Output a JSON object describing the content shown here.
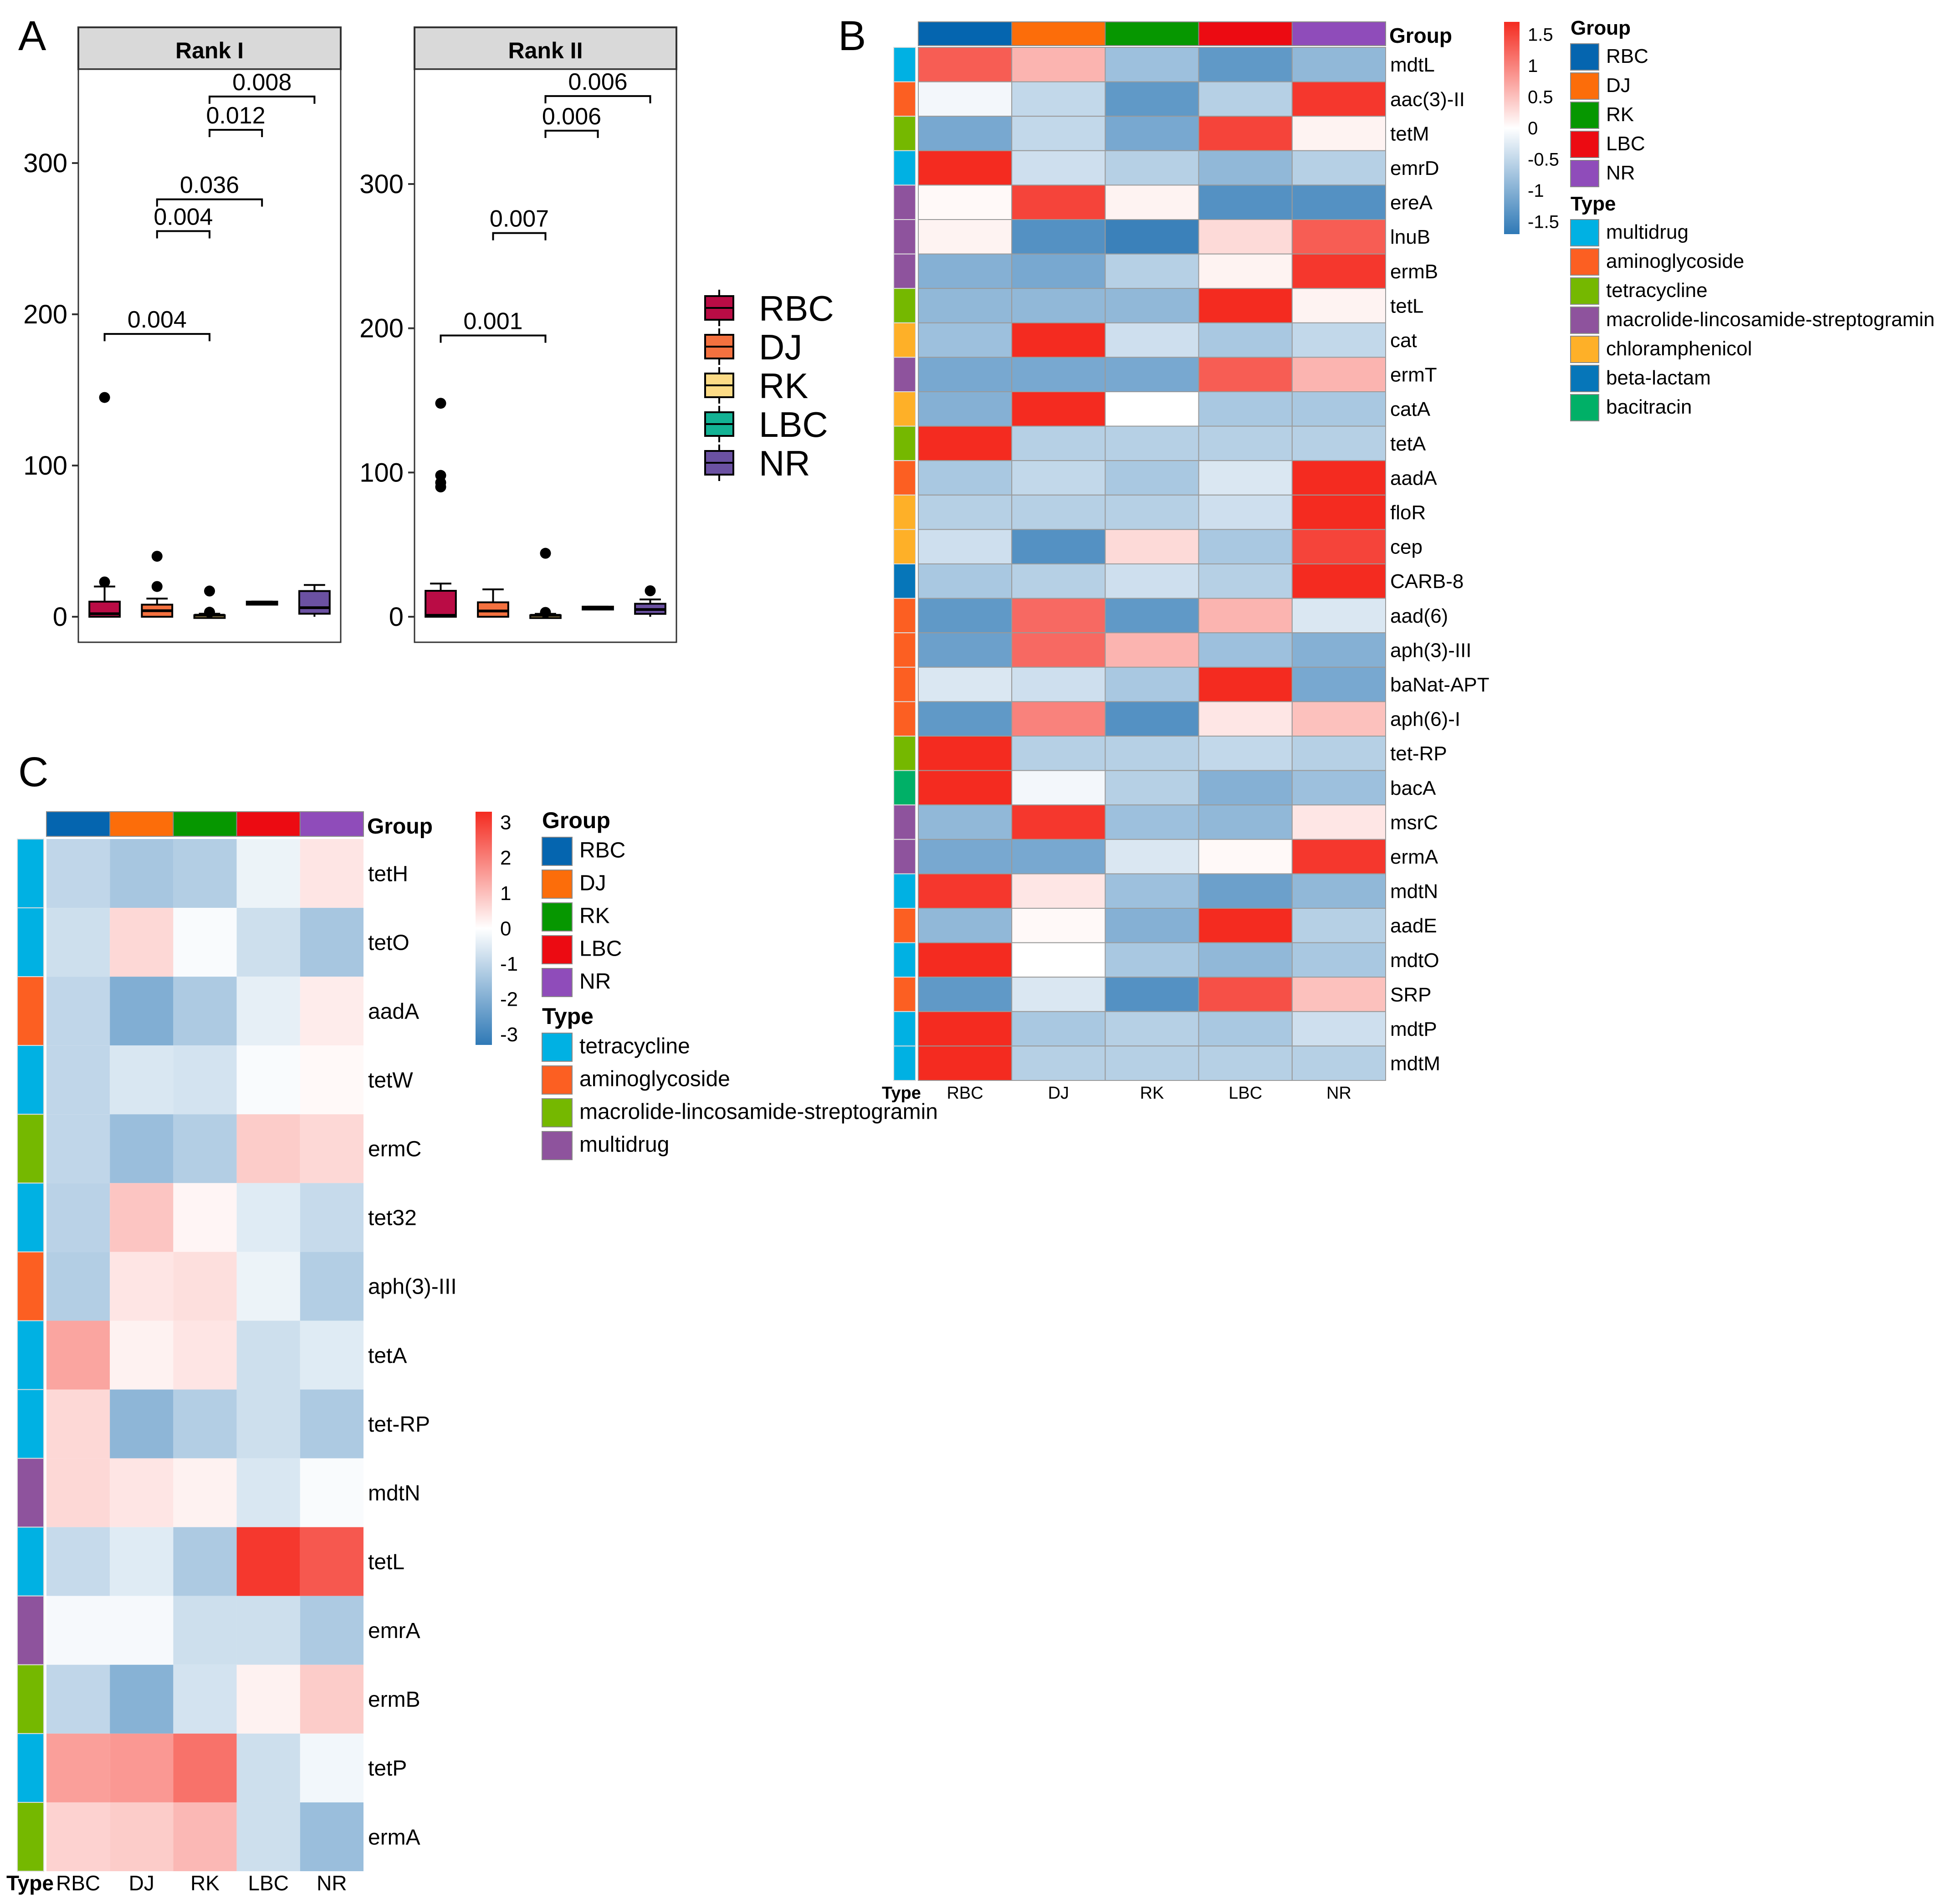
{
  "colors": {
    "RBC": "#0565AF",
    "DJ": "#FC6D0A",
    "RK": "#069700",
    "LBC": "#EC0B12",
    "NR": "#8F4CBA",
    "box_RBC": "#BA0C45",
    "box_DJ": "#F4713F",
    "box_RK": "#FCDB86",
    "box_LBC": "#13B294",
    "box_NR": "#6B51A2",
    "type_multidrug": "#00B1E3",
    "type_aminoglycoside": "#FC5F22",
    "type_tetracycline": "#75B800",
    "type_mls": "#8E539D",
    "type_chloramphenicol": "#FEB028",
    "type_betalactam": "#0676B9",
    "type_bacitracin": "#00B067",
    "heat_low": "#2F79B6",
    "heat_mid": "#FFFFFF",
    "heat_high": "#F42B20"
  },
  "chart_data": [
    {
      "panel_letter": "A",
      "type": "box",
      "facets": [
        {
          "title": "Rank I",
          "ylim": [
            -15,
            350
          ],
          "yticks": [
            "0",
            "100",
            "200",
            "300"
          ],
          "ytick_values": [
            0,
            100,
            200,
            300
          ],
          "groups": [
            {
              "name": "RBC",
              "q1": 0,
              "median": 2,
              "q3": 10,
              "whisker_low": 0,
              "whisker_high": 20,
              "outliers": [
                23,
                145
              ]
            },
            {
              "name": "DJ",
              "q1": 0,
              "median": 4,
              "q3": 8,
              "whisker_low": 0,
              "whisker_high": 12,
              "outliers": [
                20,
                40
              ]
            },
            {
              "name": "RK",
              "q1": 0,
              "median": 1,
              "q3": 1,
              "whisker_low": 0,
              "whisker_high": 2,
              "outliers": [
                3,
                17
              ]
            },
            {
              "name": "LBC",
              "q1": 8,
              "median": 9,
              "q3": 10,
              "whisker_low": 8,
              "whisker_high": 10,
              "outliers": []
            },
            {
              "name": "NR",
              "q1": 2,
              "median": 6,
              "q3": 17,
              "whisker_low": 0,
              "whisker_high": 21,
              "outliers": []
            }
          ],
          "comparisons": [
            {
              "a": 0,
              "b": 2,
              "label": "0.004",
              "y": 187
            },
            {
              "a": 1,
              "b": 2,
              "label": "0.004",
              "y": 255
            },
            {
              "a": 1,
              "b": 3,
              "label": "0.036",
              "y": 276
            },
            {
              "a": 2,
              "b": 3,
              "label": "0.012",
              "y": 322
            },
            {
              "a": 2,
              "b": 4,
              "label": "0.008",
              "y": 344
            }
          ]
        },
        {
          "title": "Rank II",
          "ylim": [
            -15,
            390
          ],
          "yticks": [
            "0",
            "100",
            "200",
            "300"
          ],
          "ytick_values": [
            0,
            100,
            200,
            300
          ],
          "groups": [
            {
              "name": "RBC",
              "q1": 0,
              "median": 1,
              "q3": 18,
              "whisker_low": 0,
              "whisker_high": 23,
              "outliers": [
                90,
                93,
                98,
                148
              ]
            },
            {
              "name": "DJ",
              "q1": 0,
              "median": 4,
              "q3": 10,
              "whisker_low": 0,
              "whisker_high": 19,
              "outliers": []
            },
            {
              "name": "RK",
              "q1": 0,
              "median": 1,
              "q3": 1,
              "whisker_low": 0,
              "whisker_high": 2,
              "outliers": [
                3,
                44
              ]
            },
            {
              "name": "LBC",
              "q1": 5,
              "median": 6,
              "q3": 7,
              "whisker_low": 5,
              "whisker_high": 7,
              "outliers": []
            },
            {
              "name": "NR",
              "q1": 2,
              "median": 5,
              "q3": 9,
              "whisker_low": 0,
              "whisker_high": 12,
              "outliers": [
                18
              ]
            }
          ],
          "comparisons": [
            {
              "a": 0,
              "b": 2,
              "label": "0.001",
              "y": 195
            },
            {
              "a": 1,
              "b": 2,
              "label": "0.007",
              "y": 266
            },
            {
              "a": 2,
              "b": 3,
              "label": "0.006",
              "y": 337
            },
            {
              "a": 2,
              "b": 4,
              "label": "0.006",
              "y": 361
            }
          ]
        }
      ],
      "legend": [
        "RBC",
        "DJ",
        "RK",
        "LBC",
        "NR"
      ]
    },
    {
      "panel_letter": "B",
      "type": "heatmap",
      "columns": [
        "RBC",
        "DJ",
        "RK",
        "LBC",
        "NR"
      ],
      "group_title": "Group",
      "type_title": "Type",
      "type_axis_label": "Type",
      "colorbar_ticks": [
        "1.5",
        "1",
        "0.5",
        "0",
        "-0.5",
        "-1",
        "-1.5"
      ],
      "colorbar_values": [
        1.5,
        1,
        0.5,
        0,
        -0.5,
        -1,
        -1.5
      ],
      "vmin": -1.7,
      "vmax": 1.7,
      "legend_group": [
        "RBC",
        "DJ",
        "RK",
        "LBC",
        "NR"
      ],
      "legend_type": [
        {
          "label": "multidrug",
          "key": "type_multidrug"
        },
        {
          "label": "aminoglycoside",
          "key": "type_aminoglycoside"
        },
        {
          "label": "tetracycline",
          "key": "type_tetracycline"
        },
        {
          "label": "macrolide-lincosamide-streptogramin",
          "key": "type_mls"
        },
        {
          "label": "chloramphenicol",
          "key": "type_chloramphenicol"
        },
        {
          "label": "beta-lactam",
          "key": "type_betalactam"
        },
        {
          "label": "bacitracin",
          "key": "type_bacitracin"
        }
      ],
      "rows": [
        {
          "gene": "mdtL",
          "type": "type_multidrug",
          "values": [
            1.3,
            0.6,
            -0.8,
            -1.3,
            -0.9
          ]
        },
        {
          "gene": "aac(3)-II",
          "type": "type_aminoglycoside",
          "values": [
            -0.1,
            -0.5,
            -1.3,
            -0.6,
            1.6
          ]
        },
        {
          "gene": "tetM",
          "type": "type_tetracycline",
          "values": [
            -1.1,
            -0.5,
            -1.1,
            1.5,
            0.1
          ]
        },
        {
          "gene": "emrD",
          "type": "type_multidrug",
          "values": [
            1.7,
            -0.4,
            -0.6,
            -0.9,
            -0.6
          ]
        },
        {
          "gene": "ereA",
          "type": "type_mls",
          "values": [
            0.05,
            1.5,
            0.1,
            -1.4,
            -1.4
          ]
        },
        {
          "gene": "lnuB",
          "type": "type_mls",
          "values": [
            0.1,
            -1.4,
            -1.6,
            0.3,
            1.3
          ]
        },
        {
          "gene": "ermB",
          "type": "type_mls",
          "values": [
            -1.0,
            -1.1,
            -0.6,
            0.1,
            1.6
          ]
        },
        {
          "gene": "tetL",
          "type": "type_tetracycline",
          "values": [
            -0.9,
            -0.9,
            -0.9,
            1.7,
            0.1
          ]
        },
        {
          "gene": "cat",
          "type": "type_chloramphenicol",
          "values": [
            -0.8,
            1.8,
            -0.4,
            -0.7,
            -0.5
          ]
        },
        {
          "gene": "ermT",
          "type": "type_mls",
          "values": [
            -1.1,
            -1.1,
            -1.1,
            1.3,
            0.6
          ]
        },
        {
          "gene": "catA",
          "type": "type_chloramphenicol",
          "values": [
            -1.0,
            1.7,
            0.0,
            -0.7,
            -0.7
          ]
        },
        {
          "gene": "tetA",
          "type": "type_tetracycline",
          "values": [
            1.7,
            -0.6,
            -0.6,
            -0.6,
            -0.6
          ]
        },
        {
          "gene": "aadA",
          "type": "type_aminoglycoside",
          "values": [
            -0.7,
            -0.5,
            -0.7,
            -0.3,
            1.8
          ]
        },
        {
          "gene": "floR",
          "type": "type_chloramphenicol",
          "values": [
            -0.6,
            -0.6,
            -0.6,
            -0.4,
            1.8
          ]
        },
        {
          "gene": "cep",
          "type": "type_chloramphenicol",
          "values": [
            -0.4,
            -1.4,
            0.3,
            -0.7,
            1.5
          ]
        },
        {
          "gene": "CARB-8",
          "type": "type_betalactam",
          "values": [
            -0.7,
            -0.6,
            -0.4,
            -0.6,
            1.8
          ]
        },
        {
          "gene": "aad(6)",
          "type": "type_aminoglycoside",
          "values": [
            -1.3,
            1.2,
            -1.3,
            0.6,
            -0.3
          ]
        },
        {
          "gene": "aph(3)-III",
          "type": "type_aminoglycoside",
          "values": [
            -1.2,
            1.2,
            0.6,
            -0.8,
            -1.0
          ]
        },
        {
          "gene": "baNat-APT",
          "type": "type_aminoglycoside",
          "values": [
            -0.3,
            -0.4,
            -0.7,
            1.7,
            -1.1
          ]
        },
        {
          "gene": "aph(6)-I",
          "type": "type_aminoglycoside",
          "values": [
            -1.3,
            1.0,
            -1.4,
            0.2,
            0.5
          ]
        },
        {
          "gene": "tet-RP",
          "type": "type_tetracycline",
          "values": [
            1.8,
            -0.6,
            -0.6,
            -0.5,
            -0.6
          ]
        },
        {
          "gene": "bacA",
          "type": "type_bacitracin",
          "values": [
            1.8,
            -0.1,
            -0.6,
            -1.0,
            -0.8
          ]
        },
        {
          "gene": "msrC",
          "type": "type_mls",
          "values": [
            -0.9,
            1.6,
            -0.8,
            -0.9,
            0.2
          ]
        },
        {
          "gene": "ermA",
          "type": "type_mls",
          "values": [
            -1.1,
            -1.1,
            -0.3,
            0.05,
            1.6
          ]
        },
        {
          "gene": "mdtN",
          "type": "type_multidrug",
          "values": [
            1.6,
            0.2,
            -0.8,
            -1.2,
            -0.9
          ]
        },
        {
          "gene": "aadE",
          "type": "type_aminoglycoside",
          "values": [
            -0.9,
            0.05,
            -1.0,
            1.7,
            -0.6
          ]
        },
        {
          "gene": "mdtO",
          "type": "type_multidrug",
          "values": [
            1.7,
            0.0,
            -0.7,
            -0.9,
            -0.7
          ]
        },
        {
          "gene": "SRP",
          "type": "type_aminoglycoside",
          "values": [
            -1.3,
            -0.3,
            -1.4,
            1.4,
            0.5
          ]
        },
        {
          "gene": "mdtP",
          "type": "type_multidrug",
          "values": [
            1.8,
            -0.7,
            -0.6,
            -0.7,
            -0.4
          ]
        },
        {
          "gene": "mdtM",
          "type": "type_multidrug",
          "values": [
            1.8,
            -0.6,
            -0.6,
            -0.6,
            -0.6
          ]
        }
      ]
    },
    {
      "panel_letter": "C",
      "type": "heatmap",
      "columns": [
        "RBC",
        "DJ",
        "RK",
        "LBC",
        "NR"
      ],
      "group_title": "Group",
      "type_title": "Type",
      "type_axis_label": "Type",
      "colorbar_ticks": [
        "3",
        "2",
        "1",
        "0",
        "-1",
        "-2",
        "-3"
      ],
      "colorbar_values": [
        3,
        2,
        1,
        0,
        -1,
        -2,
        -3
      ],
      "vmin": -3.3,
      "vmax": 3.3,
      "legend_group": [
        "RBC",
        "DJ",
        "RK",
        "LBC",
        "NR"
      ],
      "legend_type": [
        {
          "label": "tetracycline",
          "key": "type_multidrug"
        },
        {
          "label": "aminoglycoside",
          "key": "type_aminoglycoside"
        },
        {
          "label": "macrolide-lincosamide-streptogramin",
          "key": "type_tetracycline"
        },
        {
          "label": "multidrug",
          "key": "type_mls"
        }
      ],
      "rows": [
        {
          "gene": "tetH",
          "type": "type_multidrug",
          "values": [
            -1.0,
            -1.4,
            -1.2,
            -0.3,
            0.4
          ]
        },
        {
          "gene": "tetO",
          "type": "type_multidrug",
          "values": [
            -0.8,
            0.6,
            -0.1,
            -0.8,
            -1.4
          ]
        },
        {
          "gene": "aadA",
          "type": "type_aminoglycoside",
          "values": [
            -1.0,
            -2.0,
            -1.3,
            -0.4,
            0.3
          ]
        },
        {
          "gene": "tetW",
          "type": "type_multidrug",
          "values": [
            -1.0,
            -0.6,
            -0.7,
            -0.1,
            0.1
          ]
        },
        {
          "gene": "ermC",
          "type": "type_tetracycline",
          "values": [
            -1.0,
            -1.6,
            -1.2,
            0.8,
            0.6
          ]
        },
        {
          "gene": "tet32",
          "type": "type_multidrug",
          "values": [
            -1.1,
            0.9,
            0.15,
            -0.5,
            -0.9
          ]
        },
        {
          "gene": "aph(3)-III",
          "type": "type_aminoglycoside",
          "values": [
            -1.2,
            0.4,
            0.5,
            -0.3,
            -1.2
          ]
        },
        {
          "gene": "tetA",
          "type": "type_multidrug",
          "values": [
            1.4,
            0.2,
            0.4,
            -0.8,
            -0.5
          ]
        },
        {
          "gene": "tet-RP",
          "type": "type_multidrug",
          "values": [
            0.6,
            -1.8,
            -1.2,
            -0.8,
            -1.3
          ]
        },
        {
          "gene": "mdtN",
          "type": "type_mls",
          "values": [
            0.6,
            0.4,
            0.2,
            -0.6,
            -0.1
          ]
        },
        {
          "gene": "tetL",
          "type": "type_multidrug",
          "values": [
            -0.9,
            -0.5,
            -1.3,
            3.1,
            2.6
          ]
        },
        {
          "gene": "emrA",
          "type": "type_mls",
          "values": [
            -0.15,
            -0.15,
            -0.8,
            -0.8,
            -1.3
          ]
        },
        {
          "gene": "ermB",
          "type": "type_tetracycline",
          "values": [
            -1.0,
            -1.9,
            -0.7,
            0.2,
            0.8
          ]
        },
        {
          "gene": "tetP",
          "type": "type_multidrug",
          "values": [
            1.5,
            1.6,
            2.2,
            -0.8,
            -0.2
          ]
        },
        {
          "gene": "ermA",
          "type": "type_tetracycline",
          "values": [
            0.7,
            0.8,
            1.1,
            -0.8,
            -1.6
          ]
        }
      ]
    }
  ]
}
